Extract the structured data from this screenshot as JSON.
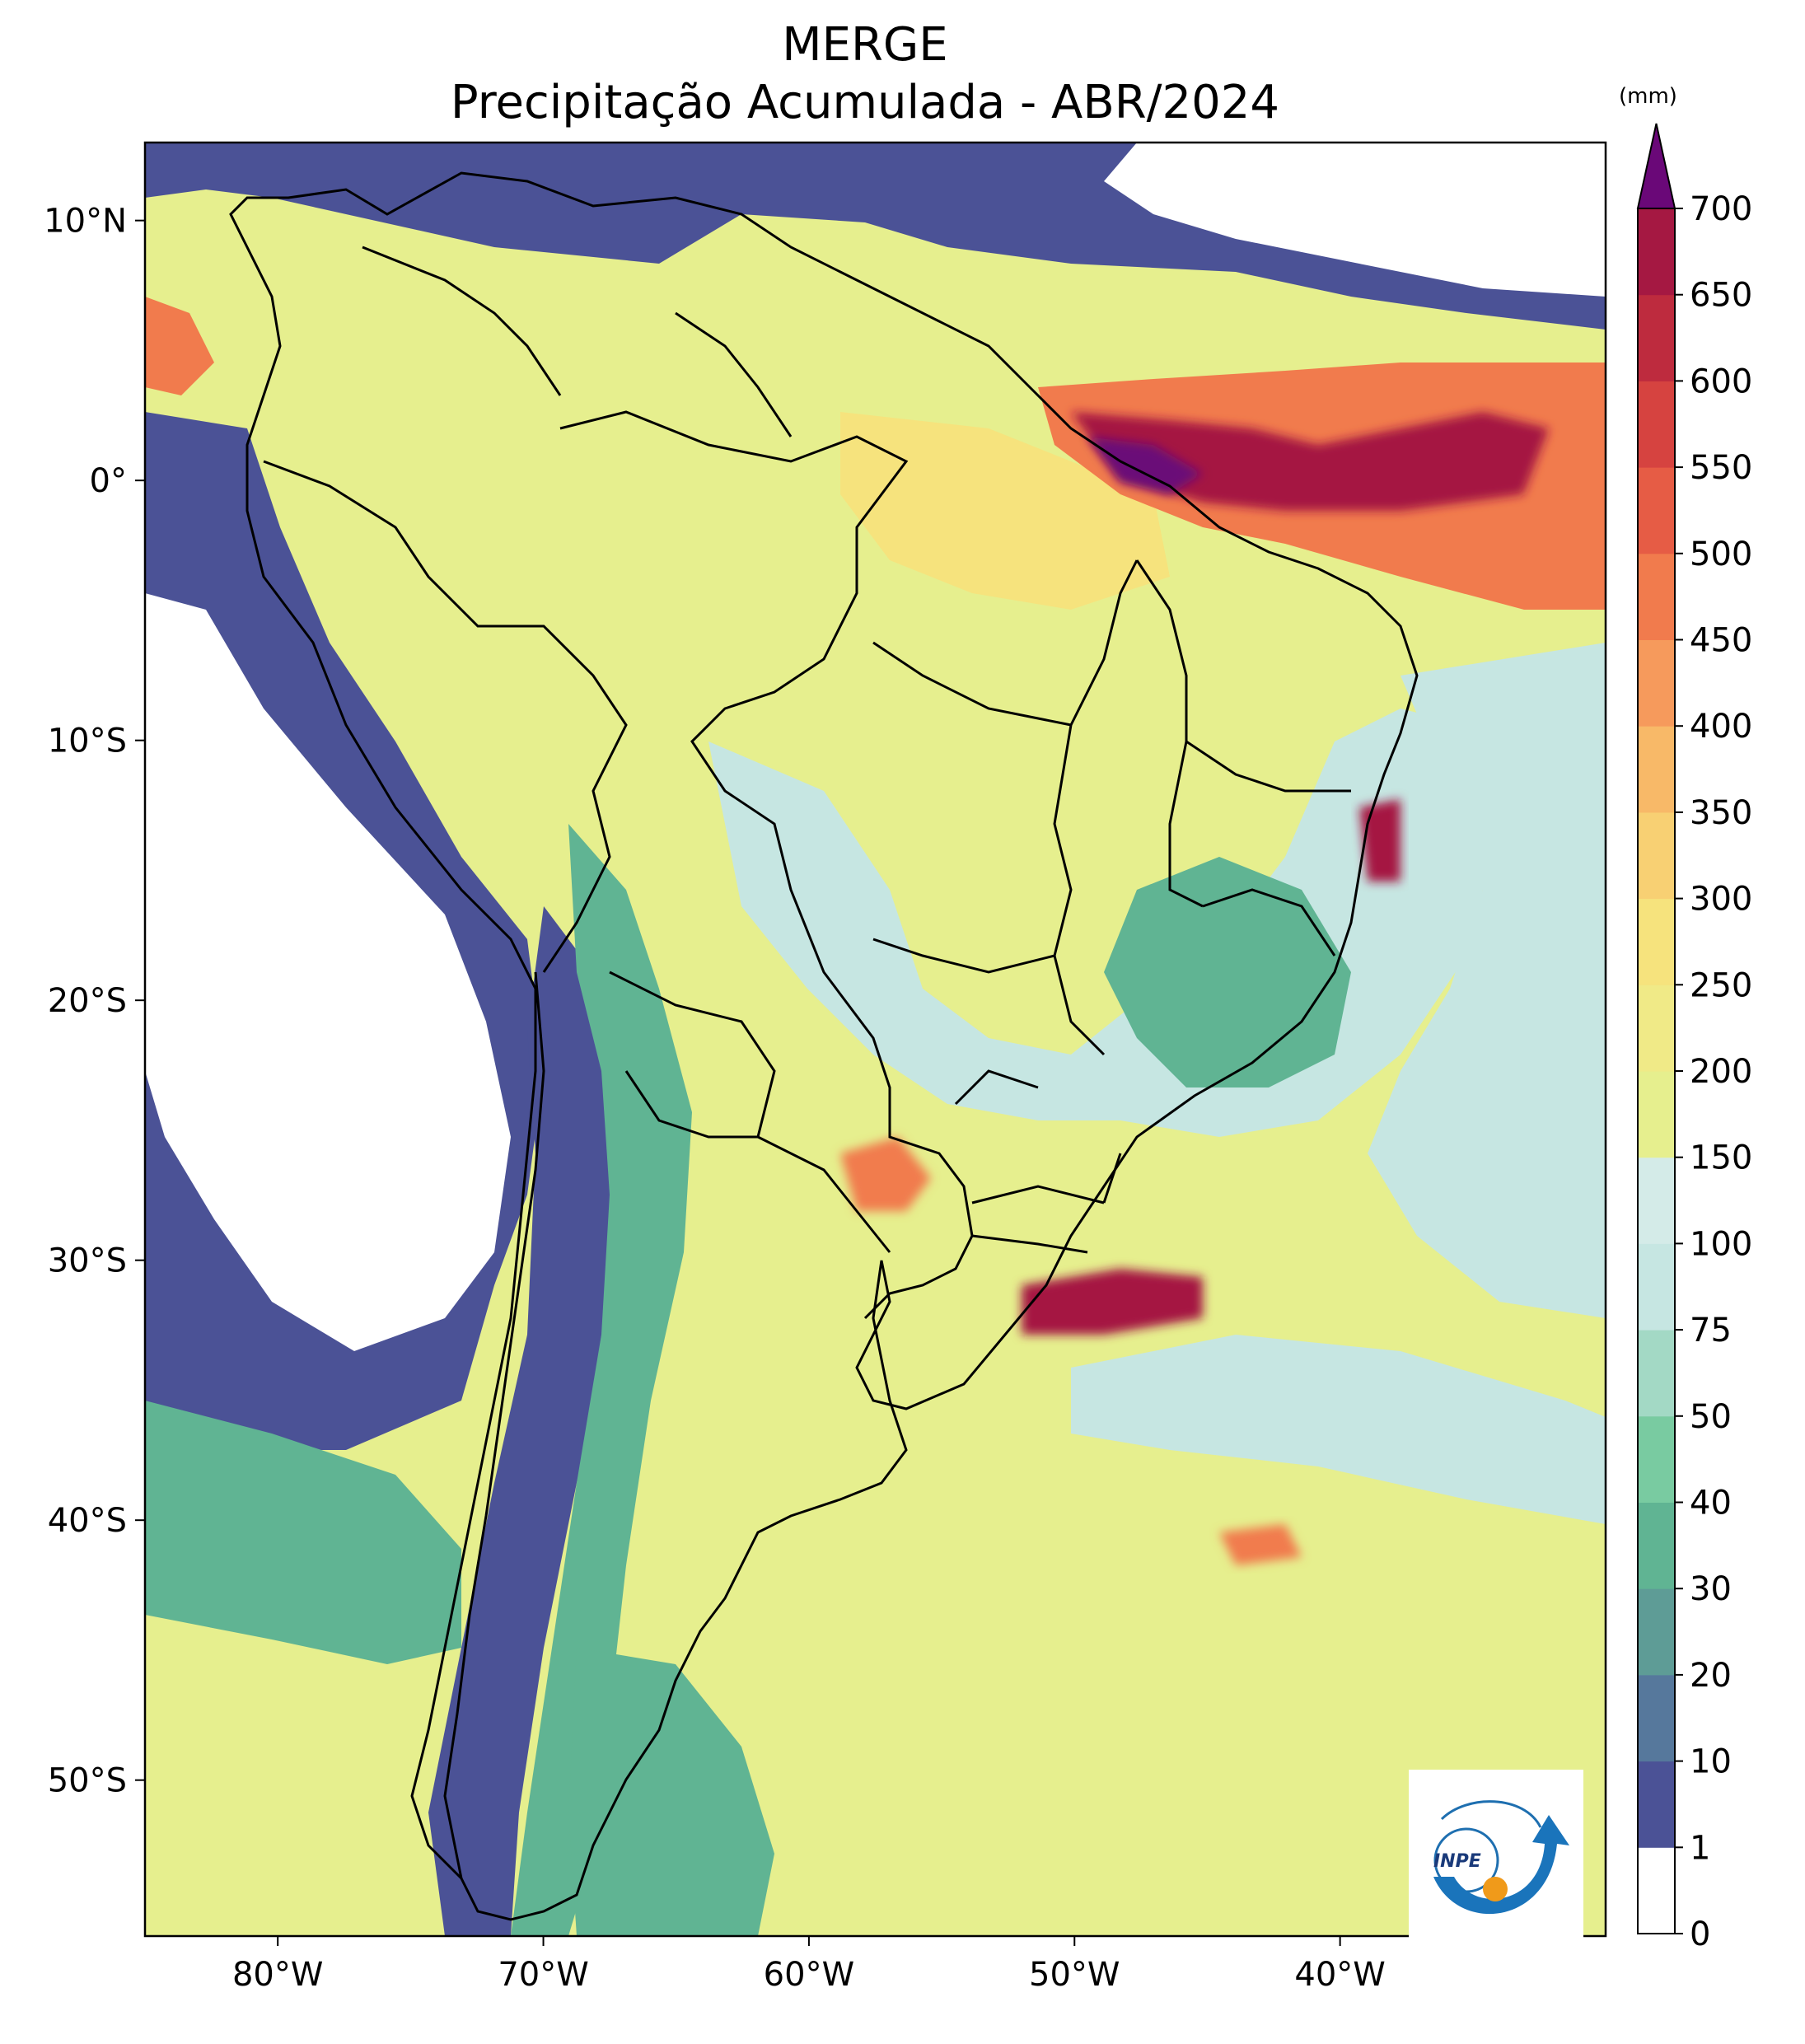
{
  "title": {
    "line1": "MERGE",
    "line2": "Precipitação Acumulada - ABR/2024"
  },
  "colorbar": {
    "units": "(mm)",
    "levels": [
      0,
      1,
      10,
      20,
      30,
      40,
      50,
      75,
      100,
      150,
      200,
      250,
      300,
      350,
      400,
      450,
      500,
      550,
      600,
      650,
      700
    ],
    "colors": [
      "#ffffff",
      "#4b5296",
      "#56789c",
      "#5e9c96",
      "#60b493",
      "#79cba1",
      "#a3d9c5",
      "#c6e6e2",
      "#d4ebe8",
      "#e6ef8e",
      "#f0ea87",
      "#f6e37d",
      "#f8d073",
      "#f8b968",
      "#f69a5c",
      "#f17b4d",
      "#e65c45",
      "#d64340",
      "#be2b3e",
      "#a51842"
    ],
    "extend_max_color": "#6a0878",
    "labels": [
      "0",
      "1",
      "10",
      "20",
      "30",
      "40",
      "50",
      "75",
      "100",
      "150",
      "200",
      "250",
      "300",
      "350",
      "400",
      "450",
      "500",
      "550",
      "600",
      "650",
      "700"
    ]
  },
  "axes": {
    "lon_ticks": [
      "80°W",
      "70°W",
      "60°W",
      "50°W",
      "40°W"
    ],
    "lat_ticks": [
      "10°N",
      "0°",
      "10°S",
      "20°S",
      "30°S",
      "40°S",
      "50°S"
    ]
  },
  "map": {
    "lon_range": [
      -85,
      -30
    ],
    "lat_range": [
      -56,
      13
    ],
    "palette": {
      "ocean_dry": "#ffffff",
      "low": "#4b5296",
      "mid_low": "#60b493",
      "mid": "#c6e6e2",
      "mid_high": "#e6ef8e",
      "high": "#f6e37d",
      "very_high": "#f17b4d",
      "extreme": "#a51842",
      "peak": "#6a0878",
      "borders": "#000000"
    }
  },
  "logo": {
    "text": "INPE"
  }
}
